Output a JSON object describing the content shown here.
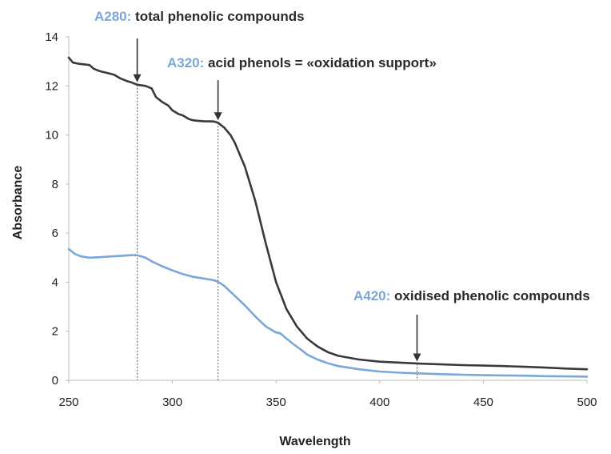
{
  "chart_data": {
    "type": "line",
    "xlabel": "Wavelength",
    "ylabel": "Absorbance",
    "xlim": [
      250,
      500
    ],
    "ylim": [
      0,
      14
    ],
    "xticks": [
      "250",
      "300",
      "350",
      "400",
      "450",
      "500"
    ],
    "yticks": [
      "0",
      "2",
      "4",
      "6",
      "8",
      "10",
      "12",
      "14"
    ],
    "grid": false,
    "series": [
      {
        "color": "#3a3a3a",
        "x": [
          250,
          252,
          255,
          260,
          262,
          265,
          270,
          272,
          275,
          278,
          280,
          283,
          287,
          290,
          292,
          295,
          298,
          300,
          303,
          305,
          308,
          310,
          312,
          315,
          320,
          322,
          325,
          328,
          330,
          335,
          340,
          345,
          350,
          355,
          360,
          365,
          370,
          375,
          380,
          390,
          400,
          410,
          420,
          430,
          440,
          450,
          460,
          470,
          480,
          490,
          500
        ],
        "values": [
          13.15,
          12.95,
          12.9,
          12.85,
          12.7,
          12.6,
          12.5,
          12.45,
          12.3,
          12.2,
          12.15,
          12.05,
          12.0,
          11.9,
          11.55,
          11.35,
          11.2,
          11.0,
          10.85,
          10.8,
          10.65,
          10.6,
          10.58,
          10.56,
          10.55,
          10.5,
          10.3,
          10.0,
          9.7,
          8.7,
          7.3,
          5.6,
          4.0,
          2.9,
          2.2,
          1.7,
          1.38,
          1.15,
          1.0,
          0.85,
          0.76,
          0.72,
          0.68,
          0.65,
          0.62,
          0.6,
          0.58,
          0.55,
          0.52,
          0.48,
          0.45
        ]
      },
      {
        "color": "#7ba7d8",
        "x": [
          250,
          253,
          256,
          260,
          265,
          270,
          275,
          280,
          283,
          287,
          290,
          295,
          300,
          305,
          310,
          315,
          320,
          322,
          325,
          330,
          335,
          340,
          345,
          350,
          352,
          355,
          358,
          362,
          365,
          370,
          375,
          380,
          390,
          400,
          410,
          420,
          430,
          440,
          450,
          460,
          470,
          480,
          490,
          500
        ],
        "values": [
          5.35,
          5.15,
          5.05,
          5.0,
          5.02,
          5.05,
          5.07,
          5.1,
          5.1,
          5.0,
          4.85,
          4.65,
          4.48,
          4.33,
          4.22,
          4.15,
          4.08,
          4.02,
          3.85,
          3.45,
          3.05,
          2.6,
          2.2,
          1.95,
          1.92,
          1.7,
          1.5,
          1.25,
          1.05,
          0.85,
          0.7,
          0.58,
          0.45,
          0.36,
          0.31,
          0.28,
          0.25,
          0.23,
          0.21,
          0.2,
          0.19,
          0.17,
          0.16,
          0.15
        ]
      }
    ],
    "annotations": [
      {
        "key": "A280:",
        "text": " total phenolic compounds",
        "x": 283,
        "y": 12.05
      },
      {
        "key": "A320:",
        "text": " acid phenols = «oxidation support»",
        "x": 322,
        "y": 10.5
      },
      {
        "key": "A420:",
        "text": " oxidised phenolic compounds",
        "x": 418,
        "y": 0.67
      }
    ]
  }
}
